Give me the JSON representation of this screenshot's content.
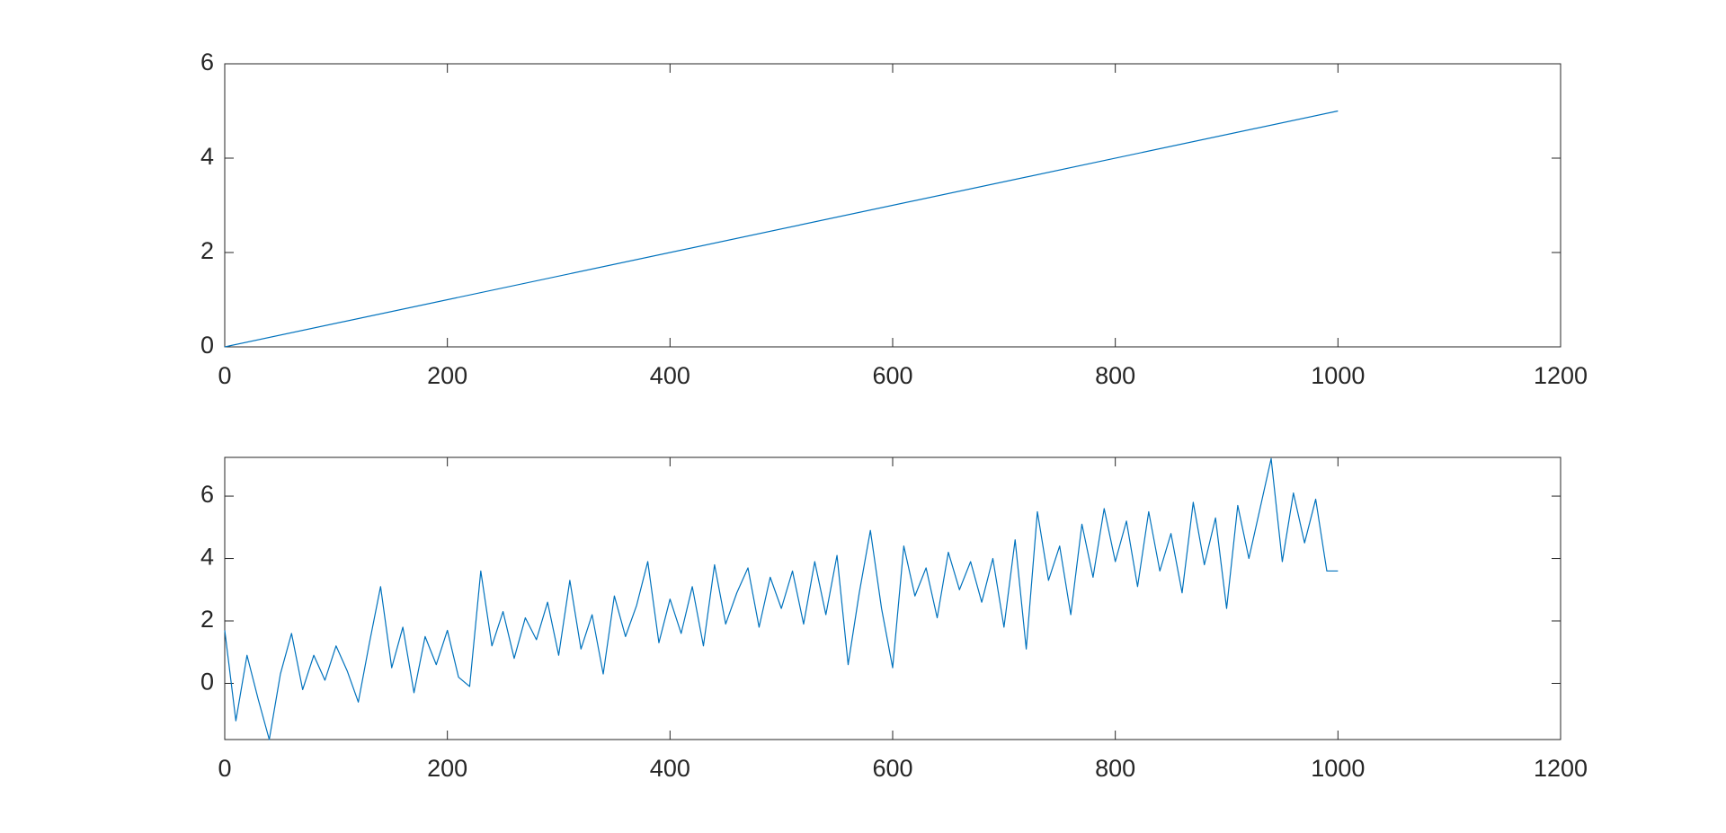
{
  "chart_data": [
    {
      "type": "line",
      "color": "#0072bd",
      "x": [
        0,
        1000
      ],
      "values": [
        0,
        5
      ],
      "xlim": [
        0,
        1200
      ],
      "xticks": [
        0,
        200,
        400,
        600,
        800,
        1000,
        1200
      ],
      "ylim": [
        0,
        6
      ],
      "yticks": [
        0,
        2,
        4,
        6
      ]
    },
    {
      "type": "line",
      "color": "#0072bd",
      "x": [
        0,
        10,
        20,
        30,
        40,
        50,
        60,
        70,
        80,
        90,
        100,
        110,
        120,
        130,
        140,
        150,
        160,
        170,
        180,
        190,
        200,
        210,
        220,
        230,
        240,
        250,
        260,
        270,
        280,
        290,
        300,
        310,
        320,
        330,
        340,
        350,
        360,
        370,
        380,
        390,
        400,
        410,
        420,
        430,
        440,
        450,
        460,
        470,
        480,
        490,
        500,
        510,
        520,
        530,
        540,
        550,
        560,
        570,
        580,
        590,
        600,
        610,
        620,
        630,
        640,
        650,
        660,
        670,
        680,
        690,
        700,
        710,
        720,
        730,
        740,
        750,
        760,
        770,
        780,
        790,
        800,
        810,
        820,
        830,
        840,
        850,
        860,
        870,
        880,
        890,
        900,
        910,
        920,
        930,
        940,
        950,
        960,
        970,
        980,
        990,
        1000
      ],
      "values": [
        1.7,
        -1.2,
        0.9,
        -0.5,
        -1.8,
        0.3,
        1.6,
        -0.2,
        0.9,
        0.1,
        1.2,
        0.4,
        -0.6,
        1.3,
        3.1,
        0.5,
        1.8,
        -0.3,
        1.5,
        0.6,
        1.7,
        0.2,
        -0.1,
        3.6,
        1.2,
        2.3,
        0.8,
        2.1,
        1.4,
        2.6,
        0.9,
        3.3,
        1.1,
        2.2,
        0.3,
        2.8,
        1.5,
        2.5,
        3.9,
        1.3,
        2.7,
        1.6,
        3.1,
        1.2,
        3.8,
        1.9,
        2.9,
        3.7,
        1.8,
        3.4,
        2.4,
        3.6,
        1.9,
        3.9,
        2.2,
        4.1,
        0.6,
        2.9,
        4.9,
        2.4,
        0.5,
        4.4,
        2.8,
        3.7,
        2.1,
        4.2,
        3.0,
        3.9,
        2.6,
        4.0,
        1.8,
        4.6,
        1.1,
        5.5,
        3.3,
        4.4,
        2.2,
        5.1,
        3.4,
        5.6,
        3.9,
        5.2,
        3.1,
        5.5,
        3.6,
        4.8,
        2.9,
        5.8,
        3.8,
        5.3,
        2.4,
        5.7,
        4.0,
        5.6,
        7.2,
        3.9,
        6.1,
        4.5,
        5.9,
        3.6,
        3.6
      ],
      "xlim": [
        0,
        1200
      ],
      "xticks": [
        0,
        200,
        400,
        600,
        800,
        1000,
        1200
      ],
      "ylim": [
        -1.8,
        7.24
      ],
      "yticks": [
        0,
        2,
        4,
        6
      ]
    }
  ]
}
